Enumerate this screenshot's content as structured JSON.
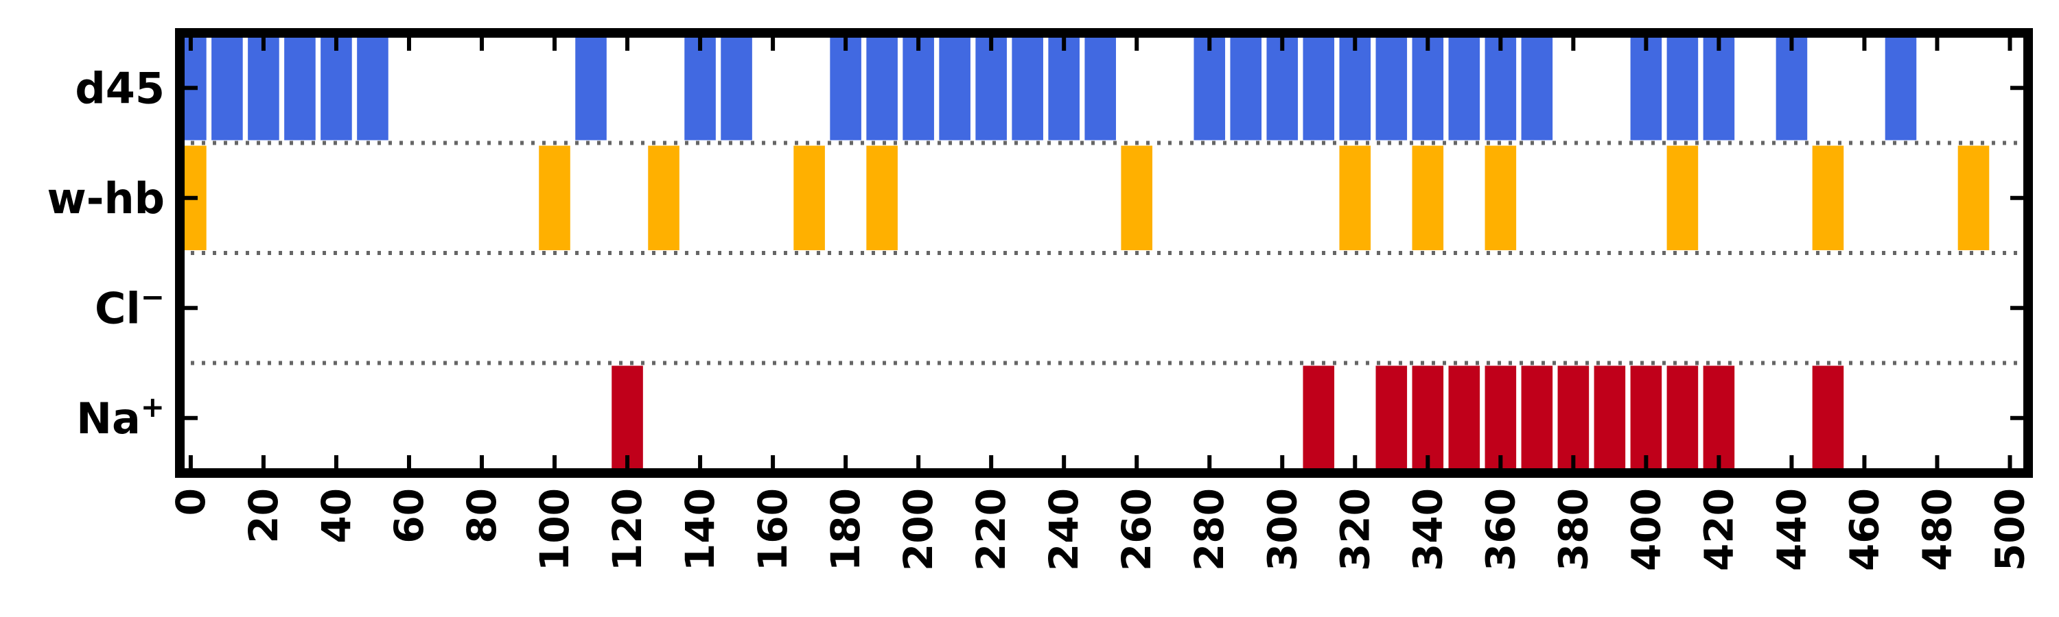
{
  "chart_data": {
    "type": "event-raster",
    "xlim": [
      -3,
      505
    ],
    "xticks": [
      0,
      20,
      40,
      60,
      80,
      100,
      120,
      140,
      160,
      180,
      200,
      220,
      240,
      260,
      280,
      300,
      320,
      340,
      360,
      380,
      400,
      420,
      440,
      460,
      480,
      500
    ],
    "xtick_labels": [
      "0",
      "20",
      "40",
      "60",
      "80",
      "100",
      "120",
      "140",
      "160",
      "180",
      "200",
      "220",
      "240",
      "260",
      "280",
      "300",
      "320",
      "340",
      "360",
      "380",
      "400",
      "420",
      "440",
      "460",
      "480",
      "500"
    ],
    "bar_width": 8.6,
    "grid_between_rows": true,
    "rows": [
      {
        "label": "d45",
        "color": "#4169e1",
        "events": [
          0,
          10,
          20,
          30,
          40,
          50,
          110,
          140,
          150,
          180,
          190,
          200,
          210,
          220,
          230,
          240,
          250,
          280,
          290,
          300,
          310,
          320,
          330,
          340,
          350,
          360,
          370,
          400,
          410,
          420,
          440,
          470
        ]
      },
      {
        "label": "w-hb",
        "color": "#ffb000",
        "events": [
          0,
          100,
          130,
          170,
          190,
          260,
          320,
          340,
          360,
          410,
          450,
          490
        ]
      },
      {
        "label": "Cl",
        "label_sup": "−",
        "color": "#4169e1",
        "events": []
      },
      {
        "label": "Na",
        "label_sup": "+",
        "color": "#c0001a",
        "events": [
          120,
          310,
          330,
          340,
          350,
          360,
          370,
          380,
          390,
          400,
          410,
          420,
          450
        ]
      }
    ]
  }
}
